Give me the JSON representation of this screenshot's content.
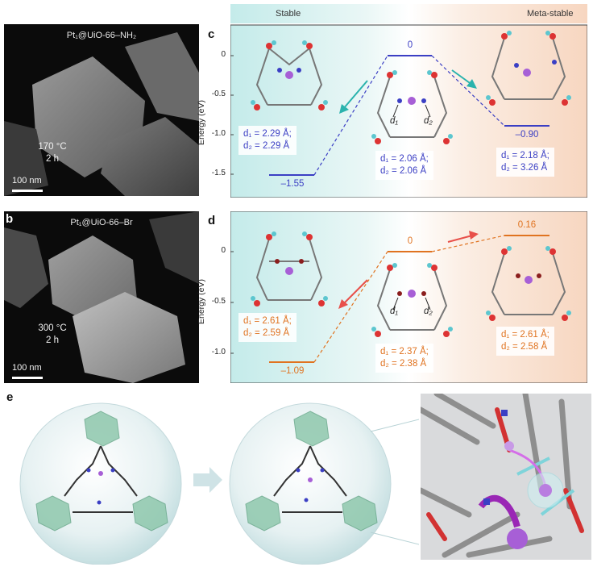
{
  "panels": {
    "a": {
      "label": "a",
      "title": "Pt₁@UiO-66–NH₂",
      "condition_temp": "170 °C",
      "condition_time": "2 h",
      "scale": "100 nm"
    },
    "b": {
      "label": "b",
      "title": "Pt₁@UiO-66–Br",
      "condition_temp": "300 °C",
      "condition_time": "2 h",
      "scale": "100 nm"
    },
    "c": {
      "label": "c",
      "header_left": "Stable",
      "header_right": "Meta-stable",
      "ylabel": "Energy (eV)",
      "ticks": [
        "0",
        "-0.5",
        "-1.0",
        "-1.5"
      ],
      "levels": [
        {
          "energy": -1.55,
          "label": "–1.55"
        },
        {
          "energy": 0,
          "label": "0"
        },
        {
          "energy": -0.9,
          "label": "–0.90"
        }
      ],
      "left_d1": "d₁ = 2.29 Å;",
      "left_d2": "d₂ = 2.29 Å",
      "mid_d1": "d₁ = 2.06 Å;",
      "mid_d2": "d₂ = 2.06 Å",
      "right_d1": "d₁ = 2.18 Å;",
      "right_d2": "d₂ = 3.26 Å",
      "mid_lbl1": "d₁",
      "mid_lbl2": "d₂"
    },
    "d": {
      "label": "d",
      "ylabel": "Energy (eV)",
      "ticks": [
        "0",
        "-0.5",
        "-1.0"
      ],
      "levels": [
        {
          "energy": -1.09,
          "label": "–1.09"
        },
        {
          "energy": 0,
          "label": "0"
        },
        {
          "energy": 0.16,
          "label": "0.16"
        }
      ],
      "left_d1": "d₁ = 2.61 Å;",
      "left_d2": "d₂ = 2.59 Å",
      "mid_d1": "d₁ = 2.37 Å;",
      "mid_d2": "d₂ = 2.38 Å",
      "right_d1": "d₁ = 2.61 Å;",
      "right_d2": "d₂ = 2.58 Å",
      "mid_lbl1": "d₁",
      "mid_lbl2": "d₂"
    },
    "e": {
      "label": "e"
    }
  },
  "colors": {
    "blue": "#3b3fc4",
    "orange": "#e07320",
    "teal": "#2ab3ad",
    "red_arrow": "#e8504a",
    "pt": "#a75fd6"
  }
}
